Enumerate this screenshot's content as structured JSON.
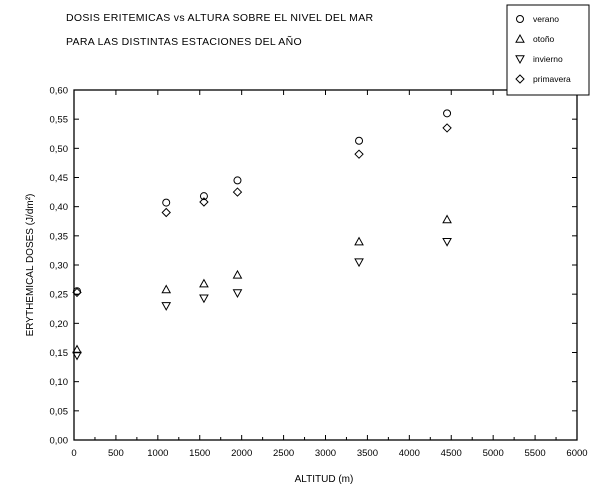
{
  "chart_data": {
    "type": "scatter",
    "title_lines": [
      "DOSIS ERITEMICAS vs ALTURA SOBRE EL NIVEL DEL MAR",
      "PARA LAS DISTINTAS ESTACIONES DEL AÑO"
    ],
    "xlabel": "ALTITUD (m)",
    "ylabel": "ERYTHEMICAL DOSES (J/dm²)",
    "xlim": [
      0,
      6000
    ],
    "ylim": [
      0,
      0.6
    ],
    "x_ticks": [
      0,
      500,
      1000,
      1500,
      2000,
      2500,
      3000,
      3500,
      4000,
      4500,
      5000,
      5500,
      6000
    ],
    "y_ticks": [
      0.0,
      0.05,
      0.1,
      0.15,
      0.2,
      0.25,
      0.3,
      0.35,
      0.4,
      0.45,
      0.5,
      0.55,
      0.6
    ],
    "y_tick_labels": [
      "0,00",
      "0,05",
      "0,10",
      "0,15",
      "0,20",
      "0,25",
      "0,30",
      "0,35",
      "0,40",
      "0,45",
      "0,50",
      "0,55",
      "0,60"
    ],
    "grid": false,
    "legend_position": "top-right",
    "series": [
      {
        "name": "verano",
        "marker": "circle",
        "x": [
          0,
          1100,
          1550,
          1950,
          3400,
          4450
        ],
        "y": [
          0.255,
          0.407,
          0.418,
          0.445,
          0.513,
          0.56
        ]
      },
      {
        "name": "otoño",
        "marker": "triangle-up",
        "x": [
          0,
          1100,
          1550,
          1950,
          3400,
          4450
        ],
        "y": [
          0.155,
          0.258,
          0.268,
          0.283,
          0.34,
          0.378
        ]
      },
      {
        "name": "invierno",
        "marker": "triangle-down",
        "x": [
          0,
          1100,
          1550,
          1950,
          3400,
          4450
        ],
        "y": [
          0.145,
          0.23,
          0.243,
          0.252,
          0.305,
          0.34
        ]
      },
      {
        "name": "primavera",
        "marker": "diamond",
        "x": [
          0,
          1100,
          1550,
          1950,
          3400,
          4450
        ],
        "y": [
          0.253,
          0.39,
          0.408,
          0.425,
          0.49,
          0.535
        ]
      }
    ]
  }
}
